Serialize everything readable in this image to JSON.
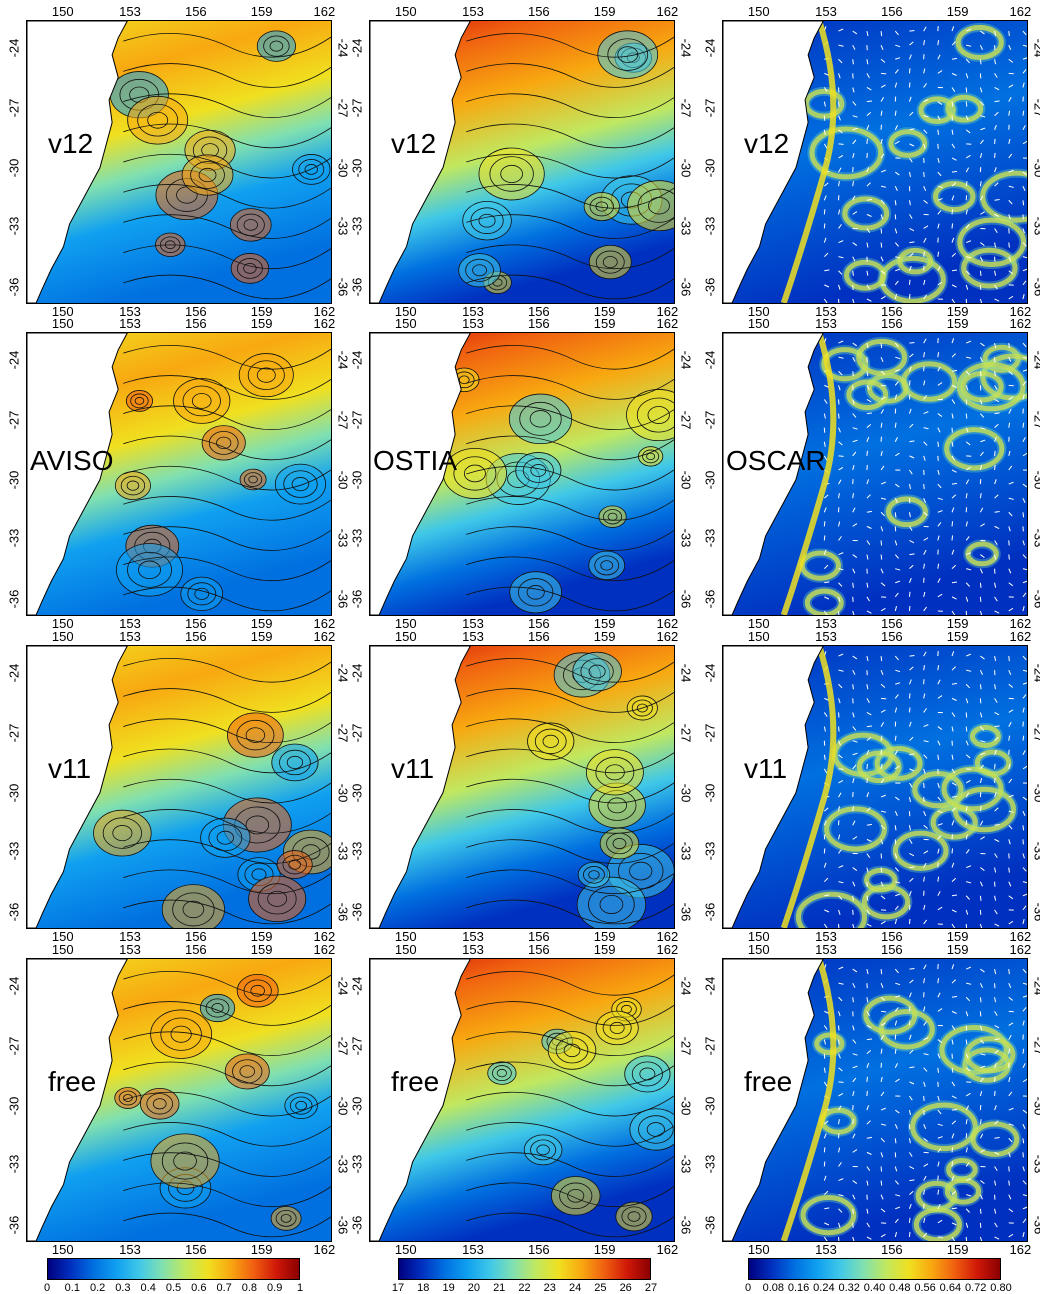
{
  "colors": {
    "land": "#ffffff",
    "contour": "#111111",
    "vector": "#ffffff",
    "colormap": [
      "#00007f",
      "#0030c0",
      "#0070e0",
      "#10a0f0",
      "#40c8e8",
      "#80e0b0",
      "#c0e860",
      "#f0e020",
      "#f8a810",
      "#f06010",
      "#d01808",
      "#8a0000"
    ]
  },
  "axes": {
    "lon_ticks": [
      "150",
      "153",
      "156",
      "159",
      "162"
    ],
    "lat_ticks": [
      "-24",
      "-27",
      "-30",
      "-33",
      "-36"
    ]
  },
  "columns": [
    {
      "id": "ssh",
      "colorbar": {
        "ticks": [
          "0",
          "0.1",
          "0.2",
          "0.3",
          "0.4",
          "0.5",
          "0.6",
          "0.7",
          "0.8",
          "0.9",
          "1"
        ]
      }
    },
    {
      "id": "sst",
      "colorbar": {
        "ticks": [
          "17",
          "18",
          "19",
          "20",
          "21",
          "22",
          "23",
          "24",
          "25",
          "26",
          "27"
        ]
      }
    },
    {
      "id": "speed",
      "colorbar": {
        "ticks": [
          "0",
          "0.08",
          "0.16",
          "0.24",
          "0.32",
          "0.40",
          "0.48",
          "0.56",
          "0.64",
          "0.72",
          "0.80"
        ]
      }
    }
  ],
  "rows": [
    {
      "labels": [
        "v12",
        "v12",
        "v12"
      ]
    },
    {
      "labels": [
        "AVISO",
        "OSTIA",
        "OSCAR"
      ]
    },
    {
      "labels": [
        "v11",
        "v11",
        "v11"
      ]
    },
    {
      "labels": [
        "free",
        "free",
        "free"
      ]
    }
  ]
}
